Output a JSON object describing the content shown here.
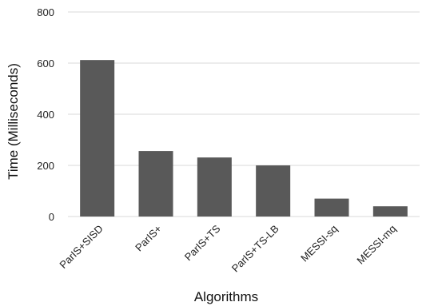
{
  "chart_data": {
    "type": "bar",
    "title": "",
    "xlabel": "Algorithms",
    "ylabel": "Time (Milliseconds)",
    "categories": [
      "ParIS+SISD",
      "ParIS+",
      "ParIS+TS",
      "ParIS+TS-LB",
      "MESSI-sq",
      "MESSI-mq"
    ],
    "values": [
      612,
      256,
      231,
      200,
      70,
      40
    ],
    "ylim": [
      0,
      800
    ],
    "yticks": [
      0,
      200,
      400,
      600,
      800
    ],
    "grid": true,
    "legend": "none",
    "colors": {
      "bar": "#595959",
      "grid": "#d9d9d9"
    }
  }
}
